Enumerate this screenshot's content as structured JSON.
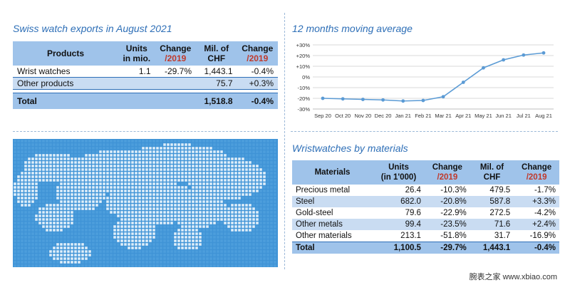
{
  "exports": {
    "title": "Swiss watch exports in August 2021",
    "headers": [
      {
        "line1": "Products",
        "line2": ""
      },
      {
        "line1": "Units",
        "line2": "in mio."
      },
      {
        "line1": "Change",
        "line2": "/2019"
      },
      {
        "line1": "Mil. of",
        "line2": "CHF"
      },
      {
        "line1": "Change",
        "line2": "/2019"
      }
    ],
    "rows": [
      {
        "label": "Wrist watches",
        "units": "1.1",
        "change_units": "-29.7%",
        "chf": "1,443.1",
        "change_chf": "-0.4%"
      },
      {
        "label": "Other products",
        "units": "",
        "change_units": "",
        "chf": "75.7",
        "change_chf": "+0.3%"
      }
    ],
    "total": {
      "label": "Total",
      "units": "",
      "change_units": "",
      "chf": "1,518.8",
      "change_chf": "-0.4%"
    }
  },
  "chart_data": {
    "type": "line",
    "title": "12 months moving average",
    "x": [
      "Sep 20",
      "Oct 20",
      "Nov 20",
      "Dec 20",
      "Jan 21",
      "Feb 21",
      "Mar 21",
      "Apr 21",
      "May 21",
      "Jun 21",
      "Jul 21",
      "Aug 21"
    ],
    "series": [
      {
        "values": [
          -20,
          -20.5,
          -21,
          -21.5,
          -22.5,
          -22,
          -18.5,
          -5,
          8.5,
          16,
          20.5,
          22.5
        ]
      }
    ],
    "y_ticks": [
      "+30%",
      "+20%",
      "+10%",
      "0%",
      "-10%",
      "-20%",
      "-30%"
    ],
    "ylim": [
      -30,
      30
    ],
    "grid": true,
    "colors": {
      "line": "#5b9bd5",
      "grid": "#d9d9d9"
    }
  },
  "materials": {
    "title": "Wristwatches by materials",
    "headers": [
      {
        "line1": "Materials",
        "line2": ""
      },
      {
        "line1": "Units",
        "line2": "(in 1'000)"
      },
      {
        "line1": "Change",
        "line2": "/2019"
      },
      {
        "line1": "Mil. of",
        "line2": "CHF"
      },
      {
        "line1": "Change",
        "line2": "/2019"
      }
    ],
    "rows": [
      {
        "label": "Precious metal",
        "units": "26.4",
        "change_units": "-10.3%",
        "chf": "479.5",
        "change_chf": "-1.7%"
      },
      {
        "label": "Steel",
        "units": "682.0",
        "change_units": "-20.8%",
        "chf": "587.8",
        "change_chf": "+3.3%"
      },
      {
        "label": "Gold-steel",
        "units": "79.6",
        "change_units": "-22.9%",
        "chf": "272.5",
        "change_chf": "-4.2%"
      },
      {
        "label": "Other metals",
        "units": "99.4",
        "change_units": "-23.5%",
        "chf": "71.6",
        "change_chf": "+2.4%"
      },
      {
        "label": "Other materials",
        "units": "213.1",
        "change_units": "-51.8%",
        "chf": "31.7",
        "change_chf": "-16.9%"
      }
    ],
    "total": {
      "label": "Total",
      "units": "1,100.5",
      "change_units": "-29.7%",
      "chf": "1,443.1",
      "change_chf": "-0.4%"
    }
  },
  "footer": "腕表之家 www.xbiao.com",
  "colors": {
    "accent": "#2e6fb7",
    "header_bg": "#9fc3ea",
    "row_blue": "#c9dcf2",
    "negative_sub": "#c0392b",
    "map": "#4aa0dd"
  }
}
